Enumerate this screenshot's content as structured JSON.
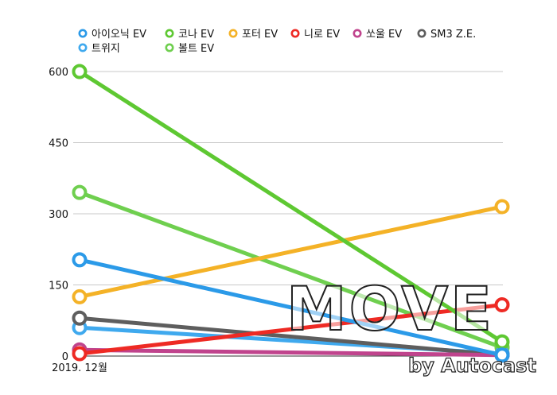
{
  "chart_data": {
    "type": "line",
    "x": [
      "2019. 12월",
      ""
    ],
    "ylim": [
      0,
      600
    ],
    "yticks": [
      0,
      150,
      300,
      450,
      600
    ],
    "grid": true,
    "legend_position": "top",
    "series": [
      {
        "name": "아이오닉 EV",
        "color": "#2b9ae8",
        "values": [
          203,
          2
        ]
      },
      {
        "name": "코나 EV",
        "color": "#5ec832",
        "values": [
          600,
          30
        ]
      },
      {
        "name": "포터 EV",
        "color": "#f4b227",
        "values": [
          125,
          315
        ]
      },
      {
        "name": "니로 EV",
        "color": "#ee2a24",
        "values": [
          5,
          108
        ]
      },
      {
        "name": "쏘울 EV",
        "color": "#c0448d",
        "values": [
          13,
          2
        ]
      },
      {
        "name": "SM3 Z.E.",
        "color": "#5e5e5e",
        "values": [
          80,
          2
        ]
      },
      {
        "name": "트위지",
        "color": "#3fa9ee",
        "values": [
          60,
          5
        ]
      },
      {
        "name": "볼트 EV",
        "color": "#6fcf4f",
        "values": [
          345,
          18
        ]
      }
    ]
  },
  "watermark": {
    "main": "MOVE",
    "sub": "by Autocast"
  }
}
